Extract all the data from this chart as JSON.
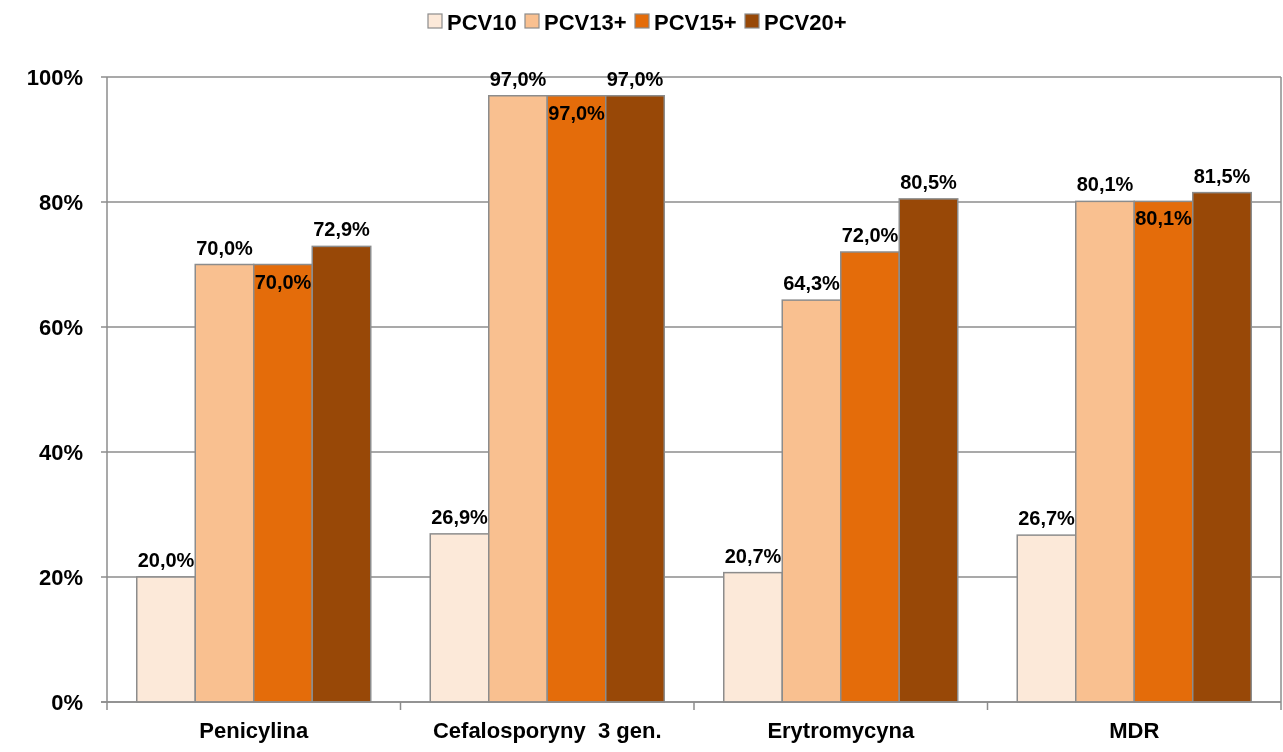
{
  "chart_data": {
    "type": "bar",
    "categories": [
      "Penicylina",
      "Cefalosporyny  3 gen.",
      "Erytromycyna",
      "MDR"
    ],
    "series": [
      {
        "name": "PCV10",
        "color": "#fce9d9",
        "values": [
          20.0,
          26.9,
          20.7,
          26.7
        ],
        "value_labels": [
          "20,0%",
          "26,9%",
          "20,7%",
          "26,7%"
        ]
      },
      {
        "name": "PCV13+",
        "color": "#f9c090",
        "values": [
          70.0,
          97.0,
          64.3,
          80.1
        ],
        "value_labels": [
          "70,0%",
          "97,0%",
          "64,3%",
          "80,1%"
        ]
      },
      {
        "name": "PCV15+",
        "color": "#e46c0a",
        "values": [
          70.0,
          97.0,
          72.0,
          80.1
        ],
        "value_labels": [
          "70,0%",
          "97,0%",
          "72,0%",
          "80,1%"
        ]
      },
      {
        "name": "PCV20+",
        "color": "#984807",
        "values": [
          72.9,
          97.0,
          80.5,
          81.5
        ],
        "value_labels": [
          "72,9%",
          "97,0%",
          "80,5%",
          "81,5%"
        ]
      }
    ],
    "ylim": [
      0,
      100
    ],
    "yticks": [
      {
        "value": 0,
        "label": "0%"
      },
      {
        "value": 20,
        "label": "20%"
      },
      {
        "value": 40,
        "label": "40%"
      },
      {
        "value": 60,
        "label": "60%"
      },
      {
        "value": 80,
        "label": "80%"
      },
      {
        "value": 100,
        "label": "100%"
      }
    ],
    "grid": "y",
    "legend": "top"
  }
}
